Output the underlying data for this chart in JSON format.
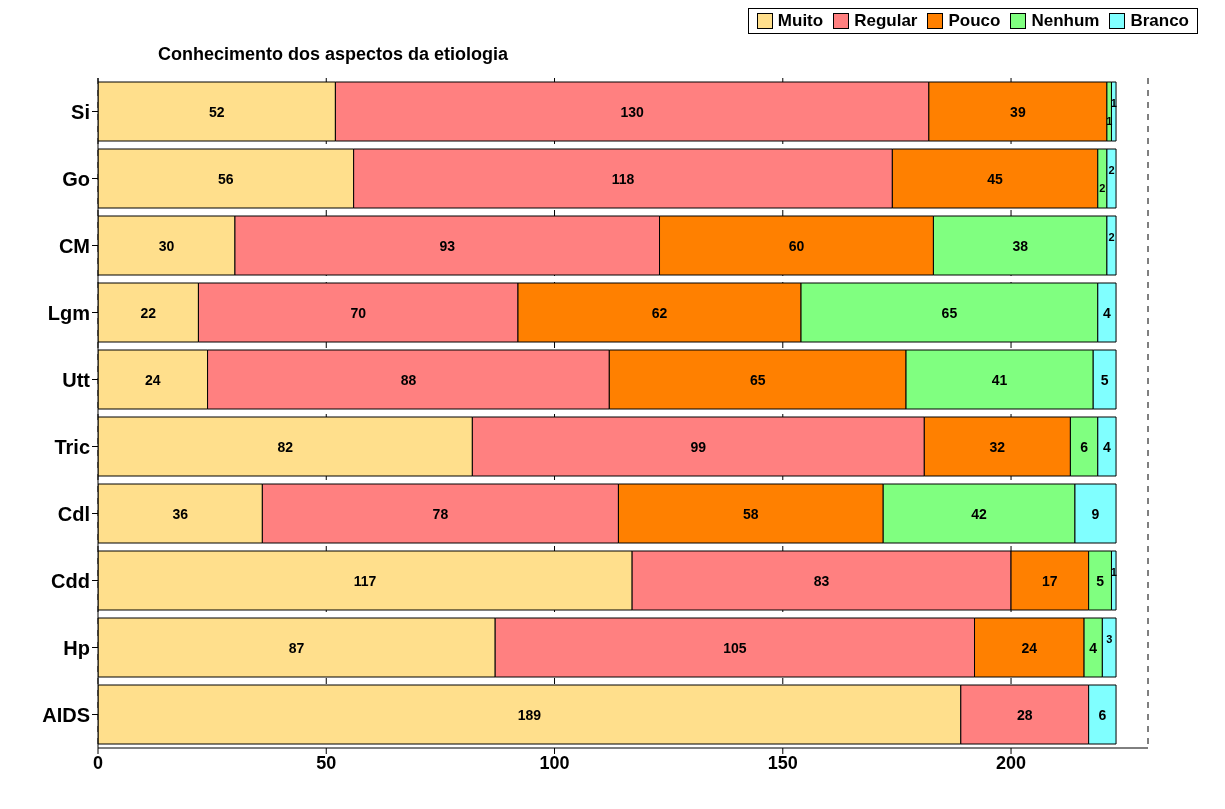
{
  "chart_data": {
    "type": "bar",
    "orientation": "horizontal",
    "stacked": true,
    "title": "Conhecimento dos aspectos da etiologia",
    "categories": [
      "Si",
      "Go",
      "CM",
      "Lgm",
      "Utt",
      "Tric",
      "Cdl",
      "Cdd",
      "Hp",
      "AIDS"
    ],
    "series": [
      {
        "name": "Muito",
        "color": "#ffdf8c",
        "values": [
          52,
          56,
          30,
          22,
          24,
          82,
          36,
          117,
          87,
          189
        ]
      },
      {
        "name": "Regular",
        "color": "#ff8080",
        "values": [
          130,
          118,
          93,
          70,
          88,
          99,
          78,
          83,
          105,
          28
        ]
      },
      {
        "name": "Pouco",
        "color": "#ff8000",
        "values": [
          39,
          45,
          60,
          62,
          65,
          32,
          58,
          17,
          24,
          null
        ]
      },
      {
        "name": "Nenhum",
        "color": "#80ff80",
        "values": [
          1,
          2,
          38,
          65,
          41,
          6,
          42,
          5,
          4,
          null
        ]
      },
      {
        "name": "Branco",
        "color": "#80ffff",
        "values": [
          1,
          2,
          2,
          4,
          5,
          4,
          9,
          1,
          3,
          6
        ]
      }
    ],
    "xlim": [
      0,
      230
    ],
    "xticks": [
      0,
      50,
      100,
      150,
      200
    ],
    "grid": "x",
    "legend": "top right",
    "data_labels": true
  }
}
